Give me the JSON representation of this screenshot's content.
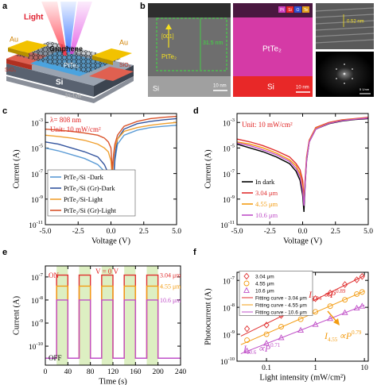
{
  "panel_a": {
    "label": "a",
    "light": "Light",
    "au_left": "Au",
    "au_right": "Au",
    "graphene": "Graphene",
    "pttе2": "PtTe₂",
    "sio2_left": "SiO₂",
    "sio2_right": "SiO₂",
    "si": "Si",
    "in_ga": "In-Ga"
  },
  "panel_b": {
    "label": "b",
    "direction": "[001]",
    "thickness": "31.5 nm",
    "layer": "PtTe₂",
    "substrate": "Si",
    "scale_1": "10 nm",
    "map_layer": "PtTe₂",
    "map_substrate": "Si",
    "scale_2": "10 nm",
    "elements": [
      "Pt",
      "Si",
      "O",
      "Te"
    ],
    "spacing": "0.52 nm",
    "scale_3": "5 1/nm"
  },
  "chart_data": [
    {
      "type": "line",
      "label": "c",
      "x_label": "Voltage (V)",
      "y_label": "Current (A)",
      "log_y": true,
      "annotations": [
        "λ= 808 nm",
        "Unit: 10 mW/cm²"
      ],
      "xlim": [
        -5,
        5
      ],
      "xticks": [
        {
          "value": -5,
          "label": "-5.0"
        },
        -2.5,
        {
          "value": 0,
          "label": "0.0"
        },
        2.5,
        {
          "value": 5,
          "label": "5.0"
        }
      ],
      "ylim": [
        1e-11,
        0.005
      ],
      "yticks": [
        {
          "value": 1e-11,
          "label": "10-11"
        },
        {
          "value": 1e-09,
          "label": "10-9"
        },
        {
          "value": 1e-07,
          "label": "10-7"
        },
        {
          "value": 1e-05,
          "label": "10-5"
        },
        {
          "value": 0.001,
          "label": "10-3"
        }
      ],
      "x": [
        -5,
        -4,
        -3,
        -2,
        -1,
        -0.5,
        -0.2,
        0,
        0.1,
        0.2,
        0.3,
        0.5,
        1,
        2,
        3,
        4,
        5
      ],
      "series": [
        {
          "name": "PtTe₂/Si -Dark",
          "color": "#5b9bd5",
          "values": [
            1e-05,
            6e-06,
            3e-06,
            1.5e-06,
            5e-07,
            1.5e-07,
            3e-08,
            3e-09,
            1e-09,
            2e-08,
            1e-06,
            2e-05,
            0.0001,
            0.00025,
            0.0004,
            0.0005,
            0.0006
          ]
        },
        {
          "name": "PtTe₂/Si (Gr)-Dark",
          "color": "#34559e",
          "values": [
            3e-05,
            2e-05,
            1e-05,
            5e-06,
            2e-06,
            5e-07,
            1e-07,
            5e-09,
            1e-09,
            3e-08,
            2e-06,
            5e-05,
            0.0003,
            0.0008,
            0.0012,
            0.0016,
            0.002
          ]
        },
        {
          "name": "PtTe₂/Si-Light",
          "color": "#f0a030",
          "values": [
            0.0001,
            8e-05,
            6e-05,
            4e-05,
            2e-05,
            1e-05,
            5e-06,
            1e-06,
            5e-08,
            2e-06,
            1e-05,
            5e-05,
            0.0002,
            0.0004,
            0.0006,
            0.0008,
            0.001
          ]
        },
        {
          "name": "PtTe₂/Si (Gr)-Light",
          "color": "#d9532b",
          "values": [
            0.0003,
            0.00025,
            0.0002,
            0.00015,
            0.0001,
            6e-05,
            3e-05,
            1e-05,
            2e-07,
            3e-06,
            2e-05,
            0.0001,
            0.0005,
            0.0012,
            0.002,
            0.0025,
            0.003
          ]
        }
      ]
    },
    {
      "type": "line",
      "label": "d",
      "x_label": "Voltage (V)",
      "y_label": "Current (A)",
      "log_y": true,
      "annotations": [
        "Unit: 10 mW/cm²"
      ],
      "xlim": [
        -5,
        5
      ],
      "xticks": [
        {
          "value": -5,
          "label": "-5.0"
        },
        -2.5,
        {
          "value": 0,
          "label": "0.0"
        },
        2.5,
        {
          "value": 5,
          "label": "5.0"
        }
      ],
      "ylim": [
        1e-11,
        0.005
      ],
      "yticks": [
        {
          "value": 1e-11,
          "label": "10-11"
        },
        {
          "value": 1e-09,
          "label": "10-9"
        },
        {
          "value": 1e-07,
          "label": "10-7"
        },
        {
          "value": 1e-05,
          "label": "10-5"
        },
        {
          "value": 0.001,
          "label": "10-3"
        }
      ],
      "x": [
        -5,
        -4,
        -3,
        -2,
        -1,
        -0.5,
        -0.2,
        0,
        0.1,
        0.2,
        0.3,
        0.5,
        1,
        2,
        3,
        4,
        5
      ],
      "series": [
        {
          "name": "In dark",
          "color": "#000000",
          "values": [
            2e-05,
            1e-05,
            5e-06,
            2e-06,
            6e-07,
            1.5e-07,
            3e-08,
            2e-09,
            1e-10,
            2e-08,
            1e-06,
            3e-05,
            0.0003,
            0.0008,
            0.0013,
            0.0017,
            0.002
          ]
        },
        {
          "name": "3.04 μm",
          "color": "#e03030",
          "values": [
            5e-05,
            3e-05,
            1.5e-05,
            6e-06,
            2e-06,
            6e-07,
            2e-07,
            3e-08,
            1e-09,
            5e-08,
            2e-06,
            4e-05,
            0.0004,
            0.001,
            0.0016,
            0.002,
            0.0025
          ]
        },
        {
          "name": "4.55 μm",
          "color": "#f39c12",
          "values": [
            3e-05,
            2e-05,
            1e-05,
            4e-06,
            1.2e-06,
            4e-07,
            1e-07,
            1e-08,
            5e-10,
            3e-08,
            1.5e-06,
            3.5e-05,
            0.00035,
            0.0009,
            0.0015,
            0.0019,
            0.0023
          ]
        },
        {
          "name": "10.6 μm",
          "color": "#c050c8",
          "values": [
            2.5e-05,
            1.5e-05,
            7e-06,
            3e-06,
            9e-07,
            2.5e-07,
            6e-08,
            5e-09,
            3e-10,
            2.5e-08,
            1.2e-06,
            3e-05,
            0.0003,
            0.00085,
            0.0014,
            0.0018,
            0.0022
          ]
        }
      ]
    },
    {
      "type": "line",
      "label": "e",
      "x_label": "Time (s)",
      "y_label": "Current (A)",
      "log_y": true,
      "annotations": [
        "ON",
        "OFF",
        "V = 0 V"
      ],
      "xlim": [
        0,
        240
      ],
      "xticks": [
        0,
        40,
        80,
        120,
        160,
        200,
        240
      ],
      "ylim": [
        1.5e-11,
        3e-07
      ],
      "yticks": [
        {
          "value": 1e-10,
          "label": "10-10"
        },
        {
          "value": 1e-09,
          "label": "10-9"
        },
        {
          "value": 1e-08,
          "label": "10-8"
        },
        {
          "value": 1e-07,
          "label": "10-7"
        }
      ],
      "x": [
        0,
        20,
        20,
        40,
        40,
        60,
        60,
        80,
        80,
        100,
        100,
        120,
        120,
        140,
        140,
        160,
        160,
        180,
        180,
        200,
        200,
        240
      ],
      "series": [
        {
          "name": "3.04 μm",
          "color": "#e03030",
          "values": [
            3e-11,
            3e-11,
            1.2e-07,
            1.2e-07,
            3e-11,
            3e-11,
            1.2e-07,
            1.2e-07,
            3e-11,
            3e-11,
            1.2e-07,
            1.2e-07,
            3e-11,
            3e-11,
            1.2e-07,
            1.2e-07,
            3e-11,
            3e-11,
            1.2e-07,
            1.2e-07,
            3e-11,
            3e-11
          ]
        },
        {
          "name": "4.55 μm",
          "color": "#f39c12",
          "values": [
            3e-11,
            3e-11,
            4e-08,
            4e-08,
            3e-11,
            3e-11,
            4e-08,
            4e-08,
            3e-11,
            3e-11,
            4e-08,
            4e-08,
            3e-11,
            3e-11,
            4e-08,
            4e-08,
            3e-11,
            3e-11,
            4e-08,
            4e-08,
            3e-11,
            3e-11
          ]
        },
        {
          "name": "10.6 μm",
          "color": "#c050c8",
          "values": [
            3e-11,
            3e-11,
            1e-08,
            1e-08,
            3e-11,
            3e-11,
            1e-08,
            1e-08,
            3e-11,
            3e-11,
            1e-08,
            1e-08,
            3e-11,
            3e-11,
            1e-08,
            1e-08,
            3e-11,
            3e-11,
            1e-08,
            1e-08,
            3e-11,
            3e-11
          ]
        }
      ]
    },
    {
      "type": "scatter",
      "label": "f",
      "x_label": "Light intensity (mW/cm²)",
      "y_label": "Photocurrent (A)",
      "log_x": true,
      "log_y": true,
      "xlim": [
        0.025,
        12
      ],
      "xticks": [
        0.1,
        1,
        10
      ],
      "ylim": [
        1e-10,
        2e-07
      ],
      "yticks": [
        {
          "value": 1e-10,
          "label": "10-10"
        },
        {
          "value": 1e-09,
          "label": "10-9"
        },
        {
          "value": 1e-08,
          "label": "10-8"
        },
        {
          "value": 1e-07,
          "label": "10-7"
        }
      ],
      "fit_labels": [
        {
          "base": "I",
          "sub": "3.04",
          "relation": "∝P",
          "power": "0.89",
          "color": "#e03030"
        },
        {
          "base": "I",
          "sub": "4.55",
          "relation": "∝P",
          "power": "0.79",
          "color": "#f39c12"
        },
        {
          "base": "I",
          "sub": "10.6",
          "relation": "∝P",
          "power": "0.71",
          "color": "#c050c8"
        }
      ],
      "series": [
        {
          "name": "3.04 μm",
          "mode": "markers",
          "marker": "diamond",
          "color": "#e03030",
          "x": [
            0.04,
            0.1,
            0.2,
            0.5,
            1,
            2,
            4,
            7,
            9
          ],
          "values": [
            1.6e-09,
            2.2e-09,
            5e-09,
            1e-08,
            2.1e-08,
            3.4e-08,
            7e-08,
            1.05e-07,
            1.4e-07
          ]
        },
        {
          "name": "4.55 μm",
          "mode": "markers",
          "marker": "circle",
          "color": "#f39c12",
          "x": [
            0.04,
            0.1,
            0.2,
            0.5,
            1,
            2,
            4,
            7,
            9
          ],
          "values": [
            6e-10,
            1e-09,
            1.9e-09,
            3.6e-09,
            6.8e-09,
            1.1e-08,
            1.9e-08,
            3.1e-08,
            3.7e-08
          ]
        },
        {
          "name": "10.6 μm",
          "mode": "markers",
          "marker": "triangle",
          "color": "#c050c8",
          "x": [
            0.04,
            0.1,
            0.2,
            0.5,
            1,
            2,
            4,
            7,
            9
          ],
          "values": [
            2.4e-10,
            4.6e-10,
            7.4e-10,
            1.4e-09,
            2.3e-09,
            3.8e-09,
            6.3e-09,
            9.3e-09,
            1.1e-08
          ]
        },
        {
          "name": "Fitting curve - 3.04 μm",
          "mode": "line",
          "color": "#e03030",
          "x": [
            0.03,
            10
          ],
          "values": [
            8.5e-10,
            1.5e-07
          ]
        },
        {
          "name": "Fitting curve - 4.55 μm",
          "mode": "line",
          "color": "#f39c12",
          "x": [
            0.03,
            10
          ],
          "values": [
            4.1e-10,
            4e-08
          ]
        },
        {
          "name": "Fitting curve - 10.6 μm",
          "mode": "line",
          "color": "#c050c8",
          "x": [
            0.03,
            10
          ],
          "values": [
            1.9e-10,
            1.2e-08
          ]
        }
      ]
    }
  ]
}
